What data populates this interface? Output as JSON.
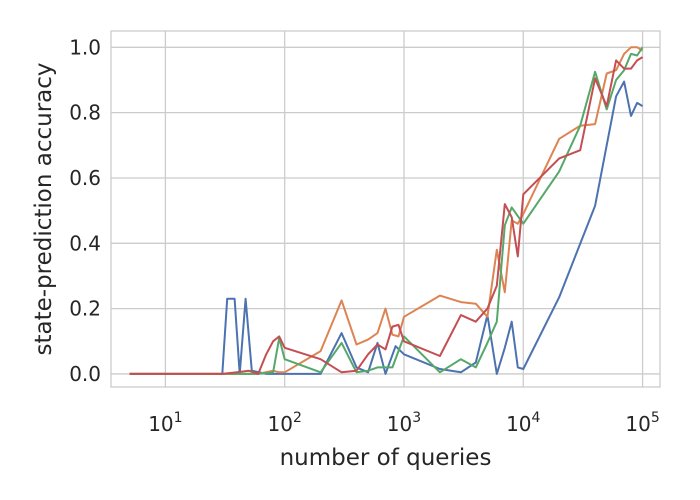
{
  "chart_data": {
    "type": "line",
    "title": "",
    "xlabel": "number of queries",
    "ylabel": "state-prediction accuracy",
    "xscale": "log",
    "xlim": [
      3.5,
      140000
    ],
    "ylim": [
      -0.04,
      1.05
    ],
    "grid": true,
    "legend": "none",
    "x_ticks": [
      {
        "value": 10,
        "base": "10",
        "exp": "1"
      },
      {
        "value": 100,
        "base": "10",
        "exp": "2"
      },
      {
        "value": 1000,
        "base": "10",
        "exp": "3"
      },
      {
        "value": 10000,
        "base": "10",
        "exp": "4"
      },
      {
        "value": 100000,
        "base": "10",
        "exp": "5"
      }
    ],
    "y_ticks": [
      {
        "value": 0.0,
        "label": "0.0"
      },
      {
        "value": 0.2,
        "label": "0.2"
      },
      {
        "value": 0.4,
        "label": "0.4"
      },
      {
        "value": 0.6,
        "label": "0.6"
      },
      {
        "value": 0.8,
        "label": "0.8"
      },
      {
        "value": 1.0,
        "label": "1.0"
      }
    ],
    "series": [
      {
        "color": "#4c72b0",
        "points": [
          [
            5,
            0
          ],
          [
            30,
            0
          ],
          [
            33,
            0.23
          ],
          [
            38,
            0.23
          ],
          [
            42,
            0
          ],
          [
            47,
            0.23
          ],
          [
            53,
            0.01
          ],
          [
            70,
            0
          ],
          [
            100,
            0
          ],
          [
            200,
            0
          ],
          [
            300,
            0.125
          ],
          [
            400,
            0.02
          ],
          [
            500,
            0.005
          ],
          [
            600,
            0.095
          ],
          [
            700,
            0
          ],
          [
            850,
            0.085
          ],
          [
            1000,
            0.06
          ],
          [
            2000,
            0.015
          ],
          [
            3000,
            0.005
          ],
          [
            4000,
            0.035
          ],
          [
            5000,
            0.18
          ],
          [
            6000,
            0
          ],
          [
            7000,
            0.08
          ],
          [
            8000,
            0.16
          ],
          [
            9000,
            0.02
          ],
          [
            10000,
            0.015
          ],
          [
            20000,
            0.235
          ],
          [
            40000,
            0.515
          ],
          [
            60000,
            0.85
          ],
          [
            70000,
            0.895
          ],
          [
            80000,
            0.79
          ],
          [
            90000,
            0.83
          ],
          [
            100000,
            0.82
          ]
        ]
      },
      {
        "color": "#dd8452",
        "points": [
          [
            5,
            0
          ],
          [
            30,
            0
          ],
          [
            60,
            0
          ],
          [
            80,
            0.01
          ],
          [
            90,
            0.005
          ],
          [
            100,
            0.005
          ],
          [
            200,
            0.07
          ],
          [
            300,
            0.225
          ],
          [
            400,
            0.09
          ],
          [
            500,
            0.105
          ],
          [
            600,
            0.125
          ],
          [
            700,
            0.2
          ],
          [
            800,
            0.12
          ],
          [
            900,
            0.115
          ],
          [
            1000,
            0.175
          ],
          [
            2000,
            0.24
          ],
          [
            3000,
            0.22
          ],
          [
            4000,
            0.215
          ],
          [
            5000,
            0.175
          ],
          [
            6000,
            0.38
          ],
          [
            7000,
            0.25
          ],
          [
            8000,
            0.47
          ],
          [
            9000,
            0.46
          ],
          [
            10000,
            0.49
          ],
          [
            20000,
            0.72
          ],
          [
            30000,
            0.76
          ],
          [
            40000,
            0.765
          ],
          [
            50000,
            0.92
          ],
          [
            60000,
            0.93
          ],
          [
            70000,
            0.98
          ],
          [
            80000,
            1.0
          ],
          [
            90000,
            1.0
          ],
          [
            100000,
            0.99
          ]
        ]
      },
      {
        "color": "#55a868",
        "points": [
          [
            5,
            0
          ],
          [
            30,
            0
          ],
          [
            60,
            0
          ],
          [
            80,
            0.005
          ],
          [
            90,
            0.11
          ],
          [
            100,
            0.045
          ],
          [
            200,
            0.005
          ],
          [
            300,
            0.095
          ],
          [
            400,
            0.005
          ],
          [
            500,
            0.01
          ],
          [
            600,
            0.02
          ],
          [
            800,
            0.02
          ],
          [
            1000,
            0.115
          ],
          [
            2000,
            0.005
          ],
          [
            3000,
            0.045
          ],
          [
            4000,
            0.02
          ],
          [
            5000,
            0.095
          ],
          [
            6000,
            0.16
          ],
          [
            7000,
            0.455
          ],
          [
            8000,
            0.51
          ],
          [
            10000,
            0.46
          ],
          [
            20000,
            0.62
          ],
          [
            30000,
            0.76
          ],
          [
            40000,
            0.925
          ],
          [
            50000,
            0.81
          ],
          [
            60000,
            0.9
          ],
          [
            70000,
            0.93
          ],
          [
            80000,
            0.98
          ],
          [
            90000,
            0.975
          ],
          [
            100000,
            1.0
          ]
        ]
      },
      {
        "color": "#c44e52",
        "points": [
          [
            5,
            0
          ],
          [
            30,
            0
          ],
          [
            40,
            0.005
          ],
          [
            50,
            0.01
          ],
          [
            60,
            0.0
          ],
          [
            70,
            0.06
          ],
          [
            80,
            0.1
          ],
          [
            90,
            0.115
          ],
          [
            100,
            0.08
          ],
          [
            200,
            0.045
          ],
          [
            300,
            0.005
          ],
          [
            400,
            0.01
          ],
          [
            500,
            0.06
          ],
          [
            600,
            0.09
          ],
          [
            700,
            0.075
          ],
          [
            800,
            0.145
          ],
          [
            900,
            0.15
          ],
          [
            1000,
            0.1
          ],
          [
            2000,
            0.055
          ],
          [
            3000,
            0.18
          ],
          [
            4000,
            0.16
          ],
          [
            5000,
            0.2
          ],
          [
            6000,
            0.27
          ],
          [
            7000,
            0.52
          ],
          [
            8000,
            0.48
          ],
          [
            9000,
            0.36
          ],
          [
            10000,
            0.55
          ],
          [
            20000,
            0.66
          ],
          [
            30000,
            0.685
          ],
          [
            40000,
            0.905
          ],
          [
            50000,
            0.82
          ],
          [
            60000,
            0.96
          ],
          [
            70000,
            0.935
          ],
          [
            80000,
            0.935
          ],
          [
            90000,
            0.96
          ],
          [
            100000,
            0.97
          ]
        ]
      }
    ]
  }
}
